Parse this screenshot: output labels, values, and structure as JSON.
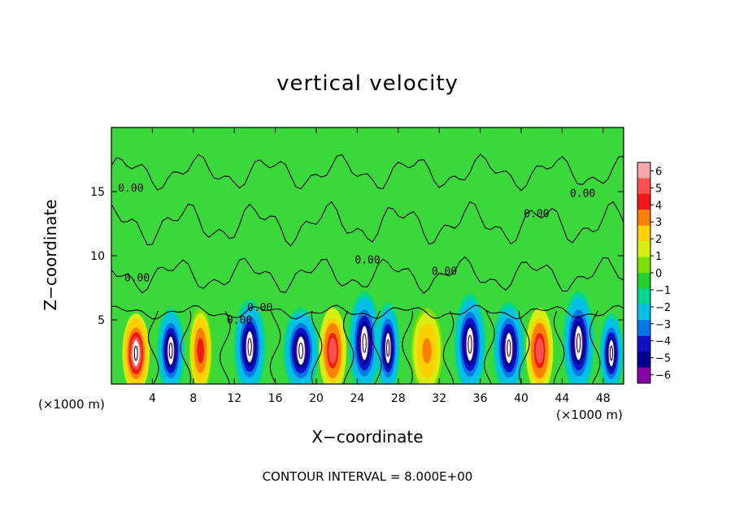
{
  "chart_data": {
    "type": "heatmap",
    "title": "vertical velocity",
    "xlabel": "X−coordinate",
    "ylabel": "Z−coordinate",
    "x_unit_left": "(×1000 m)",
    "x_unit_right": "(×1000 m)",
    "footer": "CONTOUR INTERVAL = 8.000E+00",
    "xlim": [
      0,
      50
    ],
    "ylim": [
      0,
      20
    ],
    "x_ticks": [
      4,
      8,
      12,
      16,
      20,
      24,
      28,
      32,
      36,
      40,
      44,
      48
    ],
    "y_ticks": [
      5,
      10,
      15
    ],
    "colorbar": {
      "ticks": [
        6,
        5,
        4,
        3,
        2,
        1,
        0,
        -1,
        -2,
        -3,
        -4,
        -5,
        -6
      ],
      "tick_labels": [
        "6",
        "5",
        "4",
        "3",
        "2",
        "1",
        "0",
        "−1",
        "−2",
        "−3",
        "−4",
        "−5",
        "−6"
      ],
      "colors": [
        "#f4a8a8",
        "#ff5050",
        "#f01818",
        "#ff8000",
        "#ffd000",
        "#d8ee10",
        "#7ce000",
        "#22d22a",
        "#00d890",
        "#00c0e8",
        "#0078e8",
        "#1010c8",
        "#00008c",
        "#8800a8"
      ]
    },
    "background_color": "#3ad83a",
    "contour_label": "0.00",
    "contour_labels": [
      {
        "x": 1.9,
        "y": 15.0,
        "text": "0.00"
      },
      {
        "x": 46.0,
        "y": 14.6,
        "text": "0.00"
      },
      {
        "x": 41.5,
        "y": 13.0,
        "text": "0.00"
      },
      {
        "x": 25.0,
        "y": 9.4,
        "text": "0.00"
      },
      {
        "x": 32.5,
        "y": 8.5,
        "text": "0.00"
      },
      {
        "x": 2.5,
        "y": 8.0,
        "text": "0.00"
      },
      {
        "x": 14.5,
        "y": 5.7,
        "text": "0.00"
      },
      {
        "x": 12.5,
        "y": 4.7,
        "text": "0.00"
      }
    ],
    "cells": [
      {
        "x": 2.4,
        "z": 2.4,
        "w": 0.7,
        "wmax": 6
      },
      {
        "x": 5.8,
        "z": 2.6,
        "w": 0.7,
        "wmax": -6
      },
      {
        "x": 8.7,
        "z": 2.6,
        "w": 0.6,
        "wmax": 4
      },
      {
        "x": 13.5,
        "z": 2.9,
        "w": 0.8,
        "wmax": -6
      },
      {
        "x": 18.5,
        "z": 2.6,
        "w": 0.9,
        "wmax": -6
      },
      {
        "x": 21.6,
        "z": 2.6,
        "w": 0.7,
        "wmax": 5
      },
      {
        "x": 24.7,
        "z": 3.2,
        "w": 0.8,
        "wmax": -6
      },
      {
        "x": 27.0,
        "z": 2.8,
        "w": 0.6,
        "wmax": -6
      },
      {
        "x": 30.8,
        "z": 2.6,
        "w": 0.8,
        "wmax": 3
      },
      {
        "x": 35.0,
        "z": 3.1,
        "w": 0.8,
        "wmax": -6
      },
      {
        "x": 38.8,
        "z": 2.8,
        "w": 0.8,
        "wmax": -6
      },
      {
        "x": 41.8,
        "z": 2.6,
        "w": 0.7,
        "wmax": 5
      },
      {
        "x": 45.6,
        "z": 3.2,
        "w": 0.8,
        "wmax": -6
      },
      {
        "x": 48.8,
        "z": 2.4,
        "w": 0.6,
        "wmax": -6
      }
    ],
    "grid": false
  }
}
